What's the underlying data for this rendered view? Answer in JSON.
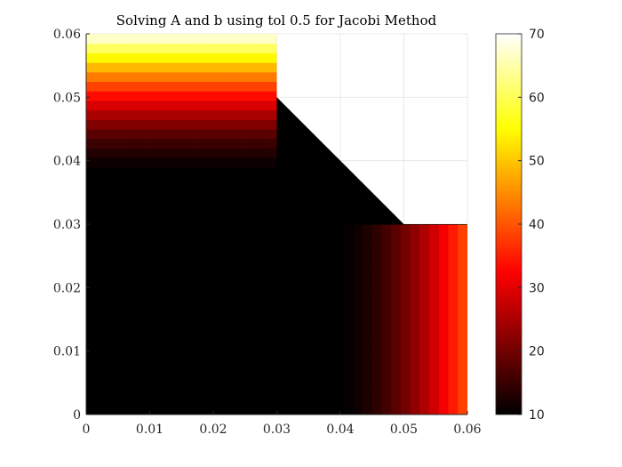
{
  "chart_data": {
    "type": "heatmap",
    "title": "Solving A and b using tol 0.5 for Jacobi Method",
    "xlabel": "",
    "ylabel": "",
    "xlim": [
      0,
      0.06
    ],
    "ylim": [
      0,
      0.06
    ],
    "x_ticks": [
      0,
      0.01,
      0.02,
      0.03,
      0.04,
      0.05,
      0.06
    ],
    "x_tick_labels": [
      "0",
      "0.01",
      "0.02",
      "0.03",
      "0.04",
      "0.05",
      "0.06"
    ],
    "y_ticks": [
      0,
      0.01,
      0.02,
      0.03,
      0.04,
      0.05,
      0.06
    ],
    "y_tick_labels": [
      "0",
      "0.01",
      "0.02",
      "0.03",
      "0.04",
      "0.05",
      "0.06"
    ],
    "grid": true,
    "colormap": "hot",
    "clim": [
      10,
      70
    ],
    "colorbar": {
      "placement": "right",
      "ticks": [
        10,
        20,
        30,
        40,
        50,
        60,
        70
      ],
      "tick_labels": [
        "10",
        "20",
        "30",
        "40",
        "50",
        "60",
        "70"
      ]
    },
    "domain_outline": [
      [
        0,
        0
      ],
      [
        0.06,
        0
      ],
      [
        0.06,
        0.03
      ],
      [
        0.05,
        0.03
      ],
      [
        0.03,
        0.05
      ],
      [
        0.03,
        0.06
      ],
      [
        0,
        0.06
      ]
    ],
    "field_description": {
      "interior_value": 10,
      "top_edge_value": 70,
      "right_edge_value": 40
    }
  }
}
